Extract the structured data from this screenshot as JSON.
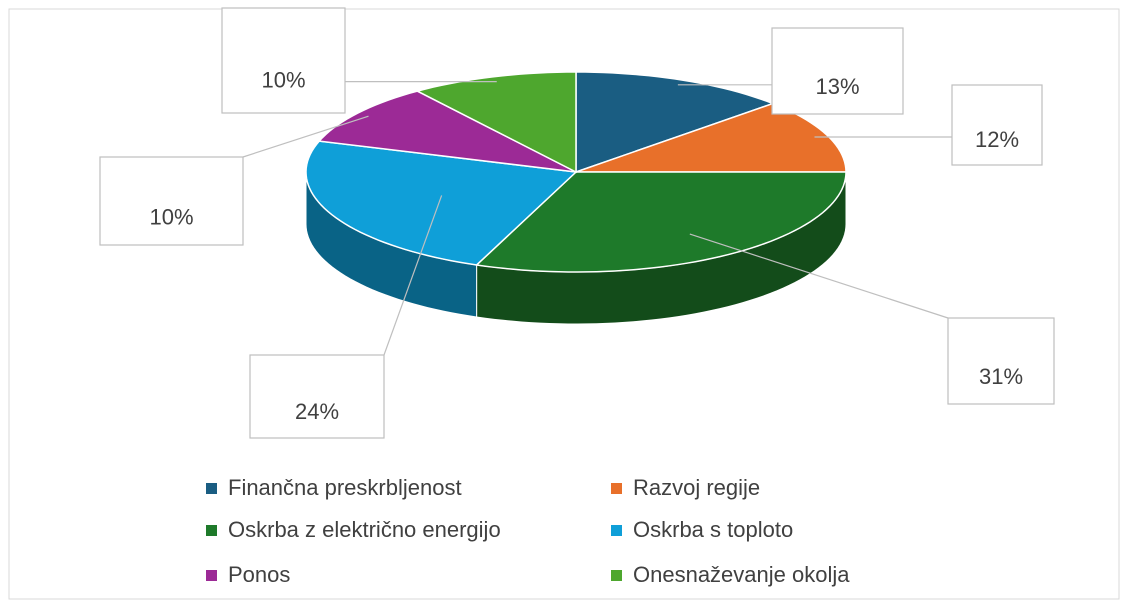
{
  "chart_data": {
    "type": "pie",
    "categories": [
      "Finančna preskrbljenost",
      "Razvoj regije",
      "Oskrba z električno energijo",
      "Oskrba s toploto",
      "Ponos",
      "Onesnaževanje okolja"
    ],
    "values": [
      13,
      12,
      31,
      24,
      10,
      10
    ],
    "value_labels": [
      "13%",
      "12%",
      "31%",
      "24%",
      "10%",
      "10%"
    ],
    "colors": [
      "#1a5d82",
      "#e8702a",
      "#1e7a2a",
      "#0f9fd8",
      "#9c2a96",
      "#4ea72e"
    ]
  }
}
